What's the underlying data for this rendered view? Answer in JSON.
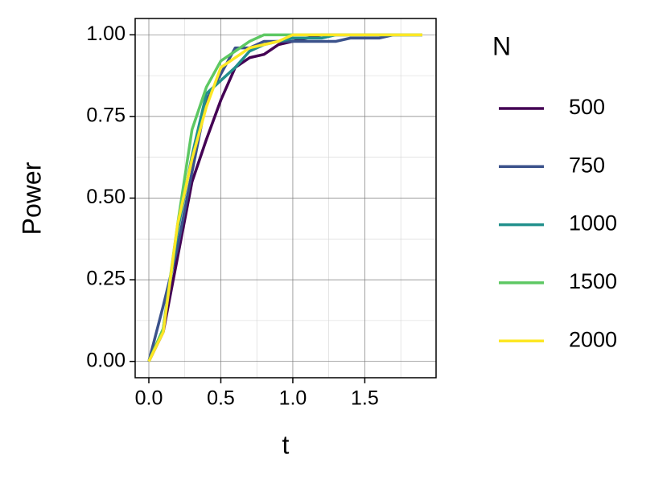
{
  "chart_data": {
    "type": "line",
    "x_label": "t",
    "y_label": "Power",
    "legend_title": "N",
    "x": [
      0,
      0.1,
      0.2,
      0.3,
      0.4,
      0.5,
      0.6,
      0.7,
      0.8,
      0.9,
      1.0,
      1.1,
      1.2,
      1.3,
      1.4,
      1.5,
      1.6,
      1.7,
      1.8,
      1.9
    ],
    "series": [
      {
        "name": "500",
        "color": "#440154",
        "values": [
          0,
          0.09,
          0.32,
          0.55,
          0.68,
          0.8,
          0.9,
          0.93,
          0.94,
          0.97,
          0.98,
          0.99,
          1.0,
          1.0,
          1.0,
          1.0,
          1.0,
          1.0,
          1.0,
          1.0
        ]
      },
      {
        "name": "750",
        "color": "#3b528b",
        "values": [
          0,
          0.17,
          0.35,
          0.58,
          0.8,
          0.88,
          0.96,
          0.96,
          0.98,
          0.98,
          0.98,
          0.98,
          0.98,
          0.98,
          0.99,
          0.99,
          0.99,
          1.0,
          1.0,
          1.0
        ]
      },
      {
        "name": "1000",
        "color": "#21908c",
        "values": [
          0,
          0.1,
          0.4,
          0.63,
          0.82,
          0.86,
          0.9,
          0.95,
          0.97,
          0.98,
          0.99,
          0.99,
          0.99,
          1.0,
          1.0,
          1.0,
          1.0,
          1.0,
          1.0,
          1.0
        ]
      },
      {
        "name": "1500",
        "color": "#5dc863",
        "values": [
          0,
          0.1,
          0.42,
          0.71,
          0.84,
          0.92,
          0.95,
          0.98,
          1.0,
          1.0,
          1.0,
          1.0,
          1.0,
          1.0,
          1.0,
          1.0,
          1.0,
          1.0,
          1.0,
          1.0
        ]
      },
      {
        "name": "2000",
        "color": "#fde725",
        "values": [
          0,
          0.09,
          0.42,
          0.62,
          0.78,
          0.9,
          0.93,
          0.96,
          0.97,
          0.98,
          1.0,
          1.0,
          1.0,
          1.0,
          1.0,
          1.0,
          1.0,
          1.0,
          1.0,
          1.0
        ]
      }
    ],
    "xlim": [
      -0.095,
      1.995
    ],
    "ylim": [
      -0.05,
      1.05
    ],
    "xticks": [
      {
        "value": 0,
        "label": "0.0"
      },
      0.5,
      {
        "value": 1,
        "label": "1.0"
      },
      1.5
    ],
    "yticks": [
      {
        "value": 0,
        "label": "0.00"
      },
      0.25,
      {
        "value": 0.5,
        "label": "0.50"
      },
      0.75,
      {
        "value": 1,
        "label": "1.00"
      }
    ],
    "x_minor_ticks": [
      0.25,
      0.75,
      1.25,
      1.75
    ],
    "y_minor_ticks": [
      0.125,
      0.375,
      0.625,
      0.875
    ],
    "grid": true
  }
}
